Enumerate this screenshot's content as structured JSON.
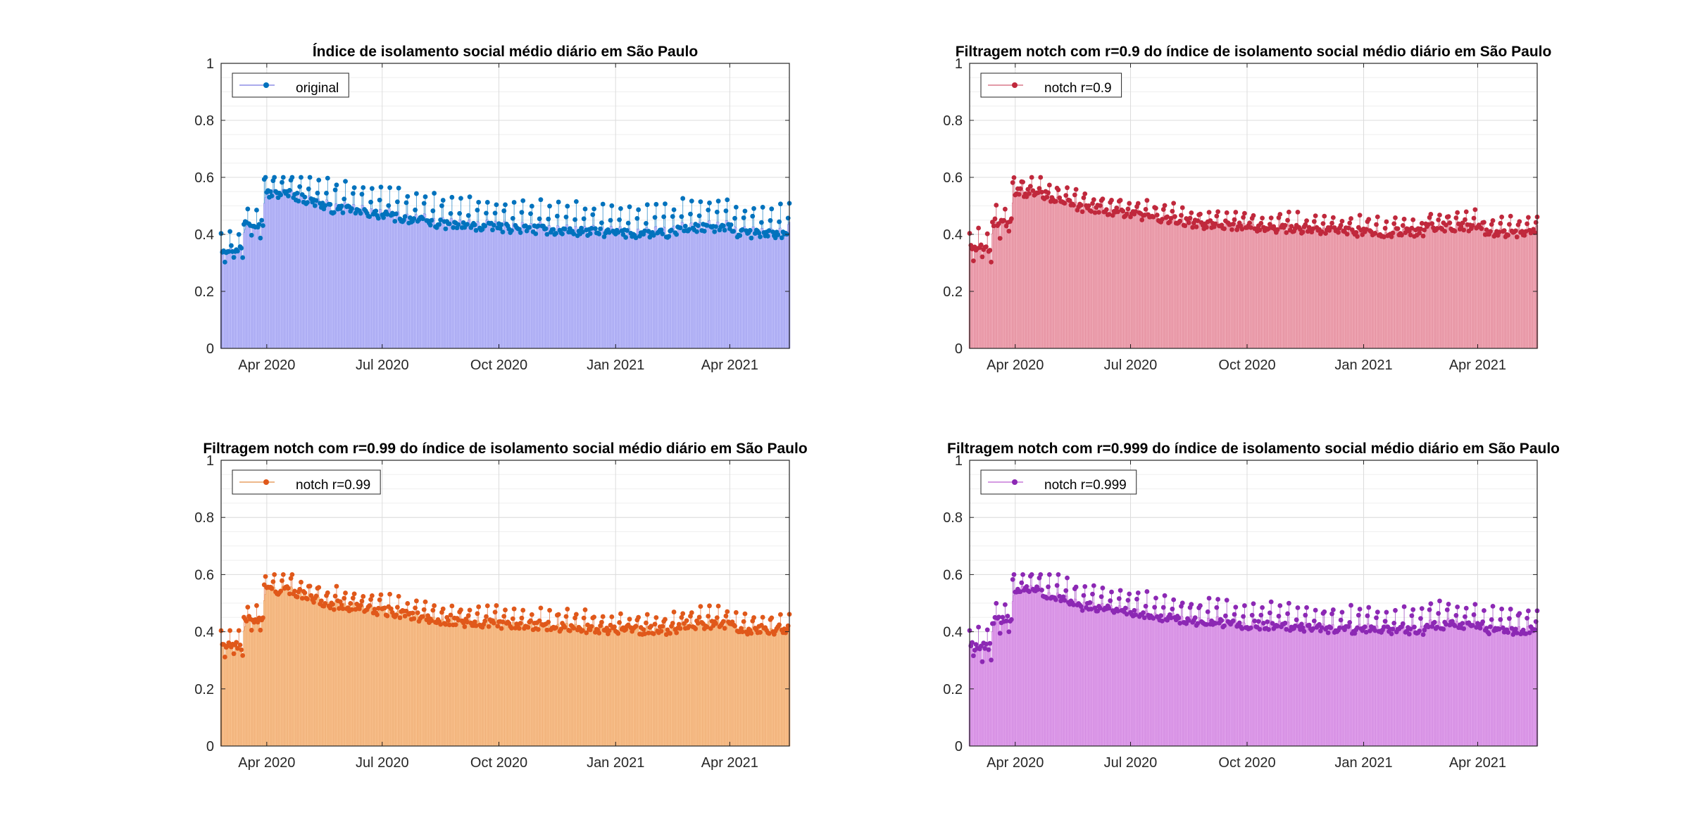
{
  "x_ticks": [
    {
      "date": "2020-04-01",
      "label": "Apr 2020"
    },
    {
      "date": "2020-07-01",
      "label": "Jul 2020"
    },
    {
      "date": "2020-10-01",
      "label": "Oct 2020"
    },
    {
      "date": "2021-01-01",
      "label": "Jan 2021"
    },
    {
      "date": "2021-04-01",
      "label": "Apr 2021"
    }
  ],
  "chart_data": [
    {
      "type": "bar",
      "title": "Índice de isolamento social médio diário em São Paulo",
      "xlabel": "",
      "ylabel": "",
      "xlim": [
        "2020-02-25",
        "2021-05-18"
      ],
      "ylim": [
        0,
        1
      ],
      "yticks": [
        0,
        0.2,
        0.4,
        0.6,
        0.8,
        1
      ],
      "ytick_labels": [
        "0",
        "0.2",
        "0.4",
        "0.6",
        "0.8",
        "1"
      ],
      "grid": "on",
      "legend_position": "top-left",
      "fill_color": "#c8c8ff",
      "bar_edge": "#8f8fe6",
      "marker_color": "#0072bd",
      "series": [
        {
          "name": "original",
          "variant": "original"
        }
      ]
    },
    {
      "type": "bar",
      "title": "Filtragem notch com r=0.9 do índice de isolamento social médio diário em São Paulo",
      "xlabel": "",
      "ylabel": "",
      "xlim": [
        "2020-02-25",
        "2021-05-18"
      ],
      "ylim": [
        0,
        1
      ],
      "yticks": [
        0,
        0.2,
        0.4,
        0.6,
        0.8,
        1
      ],
      "ytick_labels": [
        "0",
        "0.2",
        "0.4",
        "0.6",
        "0.8",
        "1"
      ],
      "grid": "on",
      "legend_position": "top-left",
      "fill_color": "#f5b4c0",
      "bar_edge": "#d9788a",
      "marker_color": "#c0283c",
      "series": [
        {
          "name": "notch r=0.9",
          "variant": "r0.9"
        }
      ]
    },
    {
      "type": "bar",
      "title": "Filtragem notch com r=0.99 do índice de isolamento social médio diário em São Paulo",
      "xlabel": "",
      "ylabel": "",
      "xlim": [
        "2020-02-25",
        "2021-05-18"
      ],
      "ylim": [
        0,
        1
      ],
      "yticks": [
        0,
        0.2,
        0.4,
        0.6,
        0.8,
        1
      ],
      "ytick_labels": [
        "0",
        "0.2",
        "0.4",
        "0.6",
        "0.8",
        "1"
      ],
      "grid": "on",
      "legend_position": "top-left",
      "fill_color": "#fcc896",
      "bar_edge": "#e8a064",
      "marker_color": "#e0581a",
      "series": [
        {
          "name": "notch r=0.99",
          "variant": "r0.99"
        }
      ]
    },
    {
      "type": "bar",
      "title": "Filtragem notch com r=0.999 do índice de isolamento social médio diário em São Paulo",
      "xlabel": "",
      "ylabel": "",
      "xlim": [
        "2020-02-25",
        "2021-05-18"
      ],
      "ylim": [
        0,
        1
      ],
      "yticks": [
        0,
        0.2,
        0.4,
        0.6,
        0.8,
        1
      ],
      "ytick_labels": [
        "0",
        "0.2",
        "0.4",
        "0.6",
        "0.8",
        "1"
      ],
      "grid": "on",
      "legend_position": "top-left",
      "fill_color": "#e6aaf0",
      "bar_edge": "#c778d8",
      "marker_color": "#8c28b4",
      "series": [
        {
          "name": "notch r=0.999",
          "variant": "r0.999"
        }
      ]
    }
  ]
}
